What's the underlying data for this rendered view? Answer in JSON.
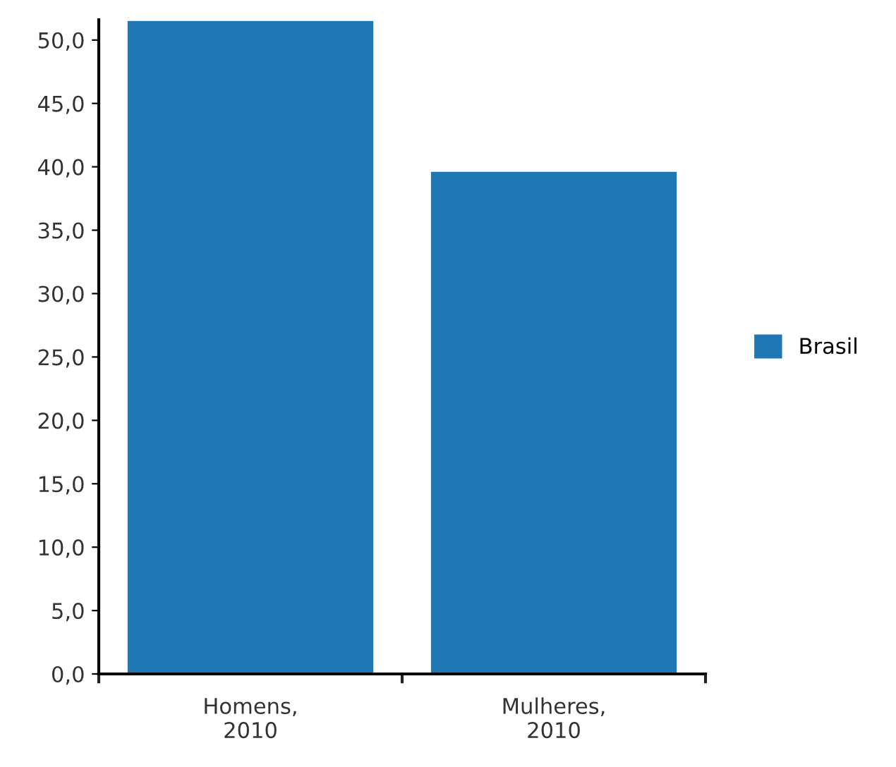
{
  "chart_data": {
    "type": "bar",
    "categories": [
      "Homens,\n2010",
      "Mulheres,\n2010"
    ],
    "series": [
      {
        "name": "Brasil",
        "color": "#1f77b4",
        "values": [
          51.5,
          39.6
        ]
      }
    ],
    "ylim": [
      0,
      51.6
    ],
    "yticks": [
      {
        "value": 0,
        "label": "0,0"
      },
      {
        "value": 5,
        "label": "5,0"
      },
      {
        "value": 10,
        "label": "10,0"
      },
      {
        "value": 15,
        "label": "15,0"
      },
      {
        "value": 20,
        "label": "20,0"
      },
      {
        "value": 25,
        "label": "25,0"
      },
      {
        "value": 30,
        "label": "30,0"
      },
      {
        "value": 35,
        "label": "35,0"
      },
      {
        "value": 40,
        "label": "40,0"
      },
      {
        "value": 45,
        "label": "45,0"
      },
      {
        "value": 50,
        "label": "50,0"
      }
    ],
    "grid": false,
    "legend": "right"
  }
}
